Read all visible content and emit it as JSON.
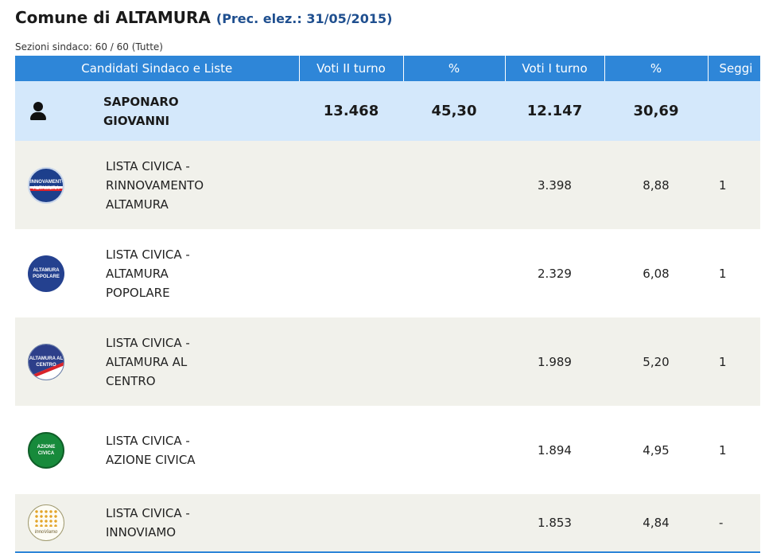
{
  "header": {
    "title": "Comune di ALTAMURA",
    "prec": "(Prec. elez.: 31/05/2015)",
    "sections": "Sezioni sindaco: 60 / 60 (Tutte)"
  },
  "table": {
    "columns": [
      "Candidati Sindaco e Liste",
      "Voti II turno",
      "%",
      "Voti I turno",
      "%",
      "Seggi"
    ],
    "candidate": {
      "name": "SAPONARO GIOVANNI",
      "votes_ii": "13.468",
      "pct_ii": "45,30",
      "votes_i": "12.147",
      "pct_i": "30,69",
      "seggi": ""
    },
    "lists": [
      {
        "name": "LISTA CIVICA - RINNOVAMENTO ALTAMURA",
        "logo_text": "RINNOVAMENTO ALTAMURA",
        "votes": "3.398",
        "pct": "8,88",
        "seggi": "1"
      },
      {
        "name": "LISTA CIVICA - ALTAMURA POPOLARE",
        "logo_text": "ALTAMURA POPOLARE",
        "votes": "2.329",
        "pct": "6,08",
        "seggi": "1"
      },
      {
        "name": "LISTA CIVICA - ALTAMURA AL CENTRO",
        "logo_text": "ALTAMURA AL CENTRO",
        "votes": "1.989",
        "pct": "5,20",
        "seggi": "1"
      },
      {
        "name": "LISTA CIVICA - AZIONE CIVICA",
        "logo_text": "AZIONE CIVICA",
        "votes": "1.894",
        "pct": "4,95",
        "seggi": "1"
      },
      {
        "name": "LISTA CIVICA - INNOVIAMO",
        "logo_text": "InnoViamo",
        "votes": "1.853",
        "pct": "4,84",
        "seggi": "-"
      }
    ]
  },
  "colors": {
    "header_blue": "#2e86d8",
    "candidate_row": "#d4e8fb",
    "alt_row": "#f1f1eb",
    "prec_blue": "#1f4f8f"
  },
  "icons": {
    "candidate": "person-icon"
  }
}
